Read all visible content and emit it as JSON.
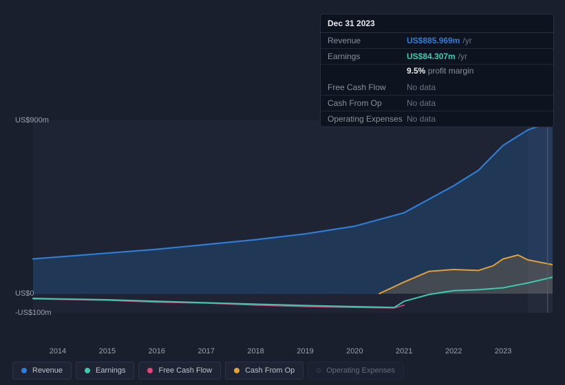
{
  "tooltip": {
    "date": "Dec 31 2023",
    "rows": [
      {
        "label": "Revenue",
        "value": "US$885.969m",
        "unit": "/yr",
        "color": "#2e7dd7"
      },
      {
        "label": "Earnings",
        "value": "US$84.307m",
        "unit": "/yr",
        "color": "#3ec9b0"
      },
      {
        "label": "Free Cash Flow",
        "value": "No data",
        "muted": true
      },
      {
        "label": "Cash From Op",
        "value": "No data",
        "muted": true
      },
      {
        "label": "Operating Expenses",
        "value": "No data",
        "muted": true
      }
    ],
    "sub": {
      "pct": "9.5%",
      "text": "profit margin"
    }
  },
  "chart": {
    "type": "area-line",
    "background_color": "#1a1f2e",
    "plot_background_color": "#1e2433",
    "grid_color": "#2a3040",
    "axis_text_color": "#9aa0ac",
    "x_years": [
      2014,
      2015,
      2016,
      2017,
      2018,
      2019,
      2020,
      2021,
      2022,
      2023
    ],
    "x_range": [
      2013.5,
      2024.0
    ],
    "x_hover": 2023.9,
    "y_range": [
      -100,
      900
    ],
    "y_ticks": [
      {
        "v": 900,
        "label": "US$900m"
      },
      {
        "v": 0,
        "label": "US$0"
      },
      {
        "v": -100,
        "label": "-US$100m"
      }
    ],
    "series": [
      {
        "name": "Revenue",
        "color": "#2e7dd7",
        "fill_opacity": 0.22,
        "line_width": 2.2,
        "area": true,
        "points": [
          [
            2013.5,
            180
          ],
          [
            2014,
            190
          ],
          [
            2015,
            210
          ],
          [
            2016,
            230
          ],
          [
            2017,
            255
          ],
          [
            2018,
            280
          ],
          [
            2019,
            310
          ],
          [
            2020,
            350
          ],
          [
            2021,
            420
          ],
          [
            2022,
            560
          ],
          [
            2022.5,
            640
          ],
          [
            2023,
            770
          ],
          [
            2023.5,
            850
          ],
          [
            2024.0,
            895
          ]
        ]
      },
      {
        "name": "Cash From Op",
        "color": "#e2a13b",
        "fill_opacity": 0.18,
        "line_width": 2,
        "area": true,
        "points": [
          [
            2020.5,
            0
          ],
          [
            2021,
            60
          ],
          [
            2021.5,
            115
          ],
          [
            2022,
            125
          ],
          [
            2022.5,
            120
          ],
          [
            2022.8,
            145
          ],
          [
            2023,
            180
          ],
          [
            2023.3,
            200
          ],
          [
            2023.5,
            175
          ],
          [
            2024.0,
            150
          ]
        ]
      },
      {
        "name": "Free Cash Flow",
        "color": "#e2457b",
        "fill_opacity": 0,
        "line_width": 1.6,
        "area": false,
        "points": [
          [
            2013.5,
            -28
          ],
          [
            2015,
            -35
          ],
          [
            2016,
            -45
          ],
          [
            2017,
            -50
          ],
          [
            2018,
            -60
          ],
          [
            2019,
            -68
          ],
          [
            2020,
            -72
          ],
          [
            2020.8,
            -75
          ],
          [
            2021,
            -60
          ]
        ]
      },
      {
        "name": "Earnings",
        "color": "#3ec9b0",
        "fill_opacity": 0,
        "line_width": 2,
        "area": false,
        "points": [
          [
            2013.5,
            -25
          ],
          [
            2014,
            -28
          ],
          [
            2015,
            -32
          ],
          [
            2016,
            -40
          ],
          [
            2017,
            -48
          ],
          [
            2018,
            -55
          ],
          [
            2019,
            -62
          ],
          [
            2020,
            -68
          ],
          [
            2020.8,
            -72
          ],
          [
            2021,
            -40
          ],
          [
            2021.5,
            -5
          ],
          [
            2022,
            15
          ],
          [
            2022.5,
            20
          ],
          [
            2023,
            30
          ],
          [
            2023.5,
            55
          ],
          [
            2024.0,
            85
          ]
        ]
      }
    ]
  },
  "legend": [
    {
      "name": "Revenue",
      "color": "#2e7dd7",
      "active": true
    },
    {
      "name": "Earnings",
      "color": "#3ec9b0",
      "active": true
    },
    {
      "name": "Free Cash Flow",
      "color": "#e2457b",
      "active": true
    },
    {
      "name": "Cash From Op",
      "color": "#e2a13b",
      "active": true
    },
    {
      "name": "Operating Expenses",
      "color": "#6b7280",
      "active": false,
      "hollow": true
    }
  ]
}
